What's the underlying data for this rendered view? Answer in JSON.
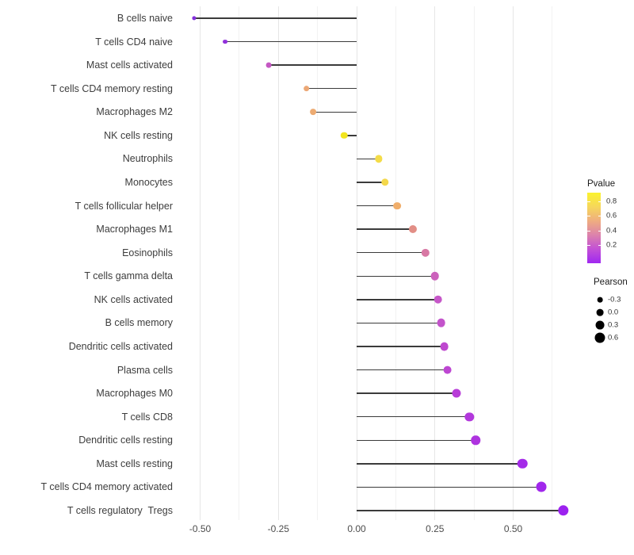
{
  "chart_data": {
    "type": "lollipop",
    "title": "",
    "xlabel": "",
    "ylabel": "",
    "orientation": "horizontal",
    "x_axis": {
      "ticks": [
        -0.5,
        -0.25,
        0,
        0.25,
        0.5
      ],
      "tick_labels": [
        "-0.50",
        "-0.25",
        "0.00",
        "0.25",
        "0.50"
      ],
      "range": [
        -0.58,
        0.715
      ],
      "baseline": 0,
      "grid": "major and minor vertical gridlines, light gray, no axis line"
    },
    "points": [
      {
        "label": "B cells naive",
        "pearson": -0.52,
        "color": "#8430DC"
      },
      {
        "label": "T cells CD4 naive",
        "pearson": -0.42,
        "color": "#9130DB"
      },
      {
        "label": "Mast cells activated",
        "pearson": -0.28,
        "color": "#C558C3"
      },
      {
        "label": "T cells CD4 memory resting",
        "pearson": -0.16,
        "color": "#ECA876"
      },
      {
        "label": "Macrophages M2",
        "pearson": -0.14,
        "color": "#EDAB72"
      },
      {
        "label": "NK cells resting",
        "pearson": -0.04,
        "color": "#F2E51F"
      },
      {
        "label": "Neutrophils",
        "pearson": 0.07,
        "color": "#F4DC48"
      },
      {
        "label": "Monocytes",
        "pearson": 0.09,
        "color": "#F4D84B"
      },
      {
        "label": "T cells follicular helper",
        "pearson": 0.13,
        "color": "#F0AE6B"
      },
      {
        "label": "Macrophages M1",
        "pearson": 0.18,
        "color": "#E28E86"
      },
      {
        "label": "Eosinophils",
        "pearson": 0.22,
        "color": "#D878A4"
      },
      {
        "label": "T cells gamma delta",
        "pearson": 0.25,
        "color": "#CC62BC"
      },
      {
        "label": "NK cells activated",
        "pearson": 0.26,
        "color": "#C657C8"
      },
      {
        "label": "B cells memory",
        "pearson": 0.27,
        "color": "#C354CB"
      },
      {
        "label": "Dendritic cells activated",
        "pearson": 0.28,
        "color": "#BE48CF"
      },
      {
        "label": "Plasma cells",
        "pearson": 0.29,
        "color": "#BD46D2"
      },
      {
        "label": "Macrophages M0",
        "pearson": 0.32,
        "color": "#B83DD8"
      },
      {
        "label": "T cells CD8",
        "pearson": 0.36,
        "color": "#B238DC"
      },
      {
        "label": "Dendritic cells resting",
        "pearson": 0.38,
        "color": "#AE33DF"
      },
      {
        "label": "Mast cells resting",
        "pearson": 0.53,
        "color": "#A42BE8"
      },
      {
        "label": "T cells CD4 memory activated",
        "pearson": 0.59,
        "color": "#A127EC"
      },
      {
        "label": "T cells regulatory  Tregs",
        "pearson": 0.66,
        "color": "#9C22EF"
      }
    ],
    "legend_pvalue": {
      "title": "Pvalue",
      "tick_labels": [
        "0.8",
        "0.6",
        "0.4",
        "0.2"
      ],
      "gradient_top_to_bottom": [
        "#FBF32E",
        "#F6D75B",
        "#EFAD80",
        "#DC82AC",
        "#C250D6",
        "#A028F0"
      ]
    },
    "legend_pearson": {
      "title": "Pearson",
      "items": [
        {
          "label": "-0.3",
          "value": -0.3
        },
        {
          "label": "0.0",
          "value": 0.0
        },
        {
          "label": "0.3",
          "value": 0.3
        },
        {
          "label": "0.6",
          "value": 0.6
        }
      ]
    }
  }
}
